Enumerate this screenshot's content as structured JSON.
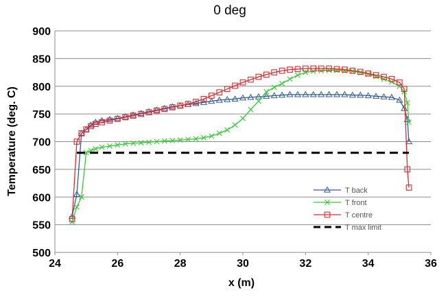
{
  "chart_data": {
    "type": "line",
    "title": "0 deg",
    "xlabel": "x (m)",
    "ylabel": "Temperature (deg. C)",
    "xlim": [
      24,
      36
    ],
    "ylim": [
      500,
      900
    ],
    "x_ticks": [
      "24",
      "26",
      "28",
      "30",
      "32",
      "34",
      "36"
    ],
    "y_ticks": [
      "500",
      "550",
      "600",
      "650",
      "700",
      "750",
      "800",
      "850",
      "900"
    ],
    "grid": "horizontal",
    "legend_position": "bottom-right",
    "series": [
      {
        "name": "T back",
        "color": "#2E5B9A",
        "marker": "triangle",
        "x": [
          24.55,
          24.7,
          24.85,
          25.0,
          25.15,
          25.3,
          25.5,
          25.75,
          26.0,
          26.25,
          26.5,
          26.75,
          27.0,
          27.25,
          27.5,
          27.75,
          28.0,
          28.25,
          28.5,
          28.75,
          29.0,
          29.25,
          29.5,
          29.75,
          30.0,
          30.25,
          30.5,
          30.75,
          31.0,
          31.25,
          31.5,
          31.75,
          32.0,
          32.25,
          32.5,
          32.75,
          33.0,
          33.25,
          33.5,
          33.75,
          34.0,
          34.25,
          34.5,
          34.75,
          35.0,
          35.15,
          35.25,
          35.3
        ],
        "y": [
          565,
          605,
          715,
          722,
          730,
          735,
          738,
          740,
          742,
          745,
          748,
          751,
          754,
          757,
          760,
          763,
          765,
          767,
          769,
          771,
          773,
          775,
          776,
          777,
          779,
          780,
          781,
          782,
          783,
          784,
          785,
          785,
          785,
          785,
          785,
          785,
          785,
          785,
          784,
          784,
          783,
          782,
          781,
          780,
          775,
          760,
          740,
          700
        ]
      },
      {
        "name": "T front",
        "color": "#33CC33",
        "marker": "x",
        "x": [
          24.55,
          24.7,
          24.85,
          25.0,
          25.15,
          25.3,
          25.5,
          25.75,
          26.0,
          26.25,
          26.5,
          26.75,
          27.0,
          27.25,
          27.5,
          27.75,
          28.0,
          28.25,
          28.5,
          28.75,
          29.0,
          29.25,
          29.5,
          29.75,
          30.0,
          30.25,
          30.5,
          30.75,
          31.0,
          31.25,
          31.5,
          31.75,
          32.0,
          32.25,
          32.5,
          32.75,
          33.0,
          33.25,
          33.5,
          33.75,
          34.0,
          34.25,
          34.5,
          34.75,
          35.0,
          35.15,
          35.25,
          35.3
        ],
        "y": [
          555,
          582,
          600,
          680,
          684,
          687,
          690,
          692,
          694,
          696,
          697,
          698,
          699,
          700,
          701,
          702,
          703,
          704,
          705,
          707,
          710,
          715,
          721,
          730,
          742,
          758,
          773,
          790,
          798,
          805,
          813,
          820,
          825,
          827,
          828,
          829,
          829,
          828,
          827,
          825,
          822,
          818,
          813,
          808,
          800,
          790,
          770,
          735
        ]
      },
      {
        "name": "T centre",
        "color": "#E8262A",
        "marker": "square",
        "x": [
          24.55,
          24.7,
          24.85,
          25.0,
          25.15,
          25.3,
          25.5,
          25.75,
          26.0,
          26.25,
          26.5,
          26.75,
          27.0,
          27.25,
          27.5,
          27.75,
          28.0,
          28.25,
          28.5,
          28.75,
          29.0,
          29.25,
          29.5,
          29.75,
          30.0,
          30.25,
          30.5,
          30.75,
          31.0,
          31.25,
          31.5,
          31.75,
          32.0,
          32.25,
          32.5,
          32.75,
          33.0,
          33.25,
          33.5,
          33.75,
          34.0,
          34.25,
          34.5,
          34.75,
          35.0,
          35.15,
          35.25,
          35.3
        ],
        "y": [
          560,
          700,
          715,
          722,
          728,
          732,
          735,
          738,
          741,
          744,
          747,
          750,
          753,
          756,
          759,
          762,
          765,
          768,
          772,
          777,
          783,
          789,
          795,
          801,
          807,
          812,
          817,
          821,
          825,
          828,
          830,
          831,
          832,
          832,
          832,
          832,
          831,
          830,
          828,
          826,
          823,
          820,
          817,
          813,
          807,
          795,
          650,
          617
        ]
      },
      {
        "name": "T max limit",
        "color": "#000000",
        "marker": "none",
        "dashed": true,
        "x": [
          24.7,
          35.3
        ],
        "y": [
          680,
          680
        ]
      }
    ]
  }
}
